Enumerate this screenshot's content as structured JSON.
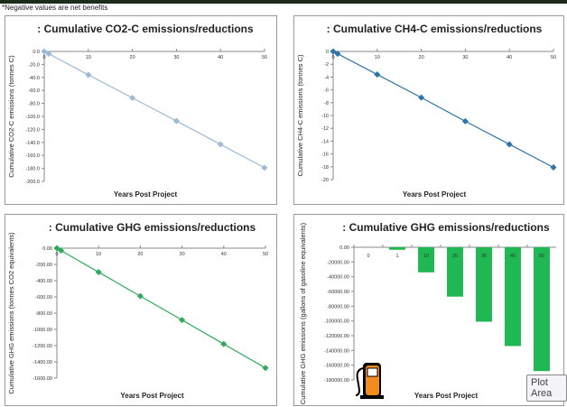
{
  "note": "*Negative values are net benefits",
  "tooltip": "Plot Area",
  "chart_data": [
    {
      "type": "line",
      "title": ": Cumulative  CO2-C  emissions/reductions",
      "xlabel": "Years Post Project",
      "ylabel": "Cumulative  CO2-C emissions  (tonnes C)",
      "x": [
        0,
        1,
        10,
        20,
        30,
        40,
        50
      ],
      "values": [
        0,
        -3.6,
        -36,
        -71.5,
        -107,
        -143,
        -179
      ],
      "xlim": [
        0,
        50
      ],
      "ylim": [
        -200,
        0
      ],
      "ytick_step": 20,
      "ytick_decimals": 1,
      "xticks": [
        0,
        10,
        20,
        30,
        40,
        50
      ],
      "color": "#9dbbd8",
      "grid": false
    },
    {
      "type": "line",
      "title": ": Cumulative CH4-C emissions/reductions",
      "xlabel": "Years Post Project",
      "ylabel": "Cumulative CH4-C emissions  (tonnes C)",
      "x": [
        0,
        1,
        10,
        20,
        30,
        40,
        50
      ],
      "values": [
        0,
        -0.36,
        -3.6,
        -7.2,
        -10.9,
        -14.5,
        -18.1
      ],
      "xlim": [
        0,
        50
      ],
      "ylim": [
        -20,
        0
      ],
      "ytick_step": 2,
      "ytick_decimals": 0,
      "xticks": [
        0,
        10,
        20,
        30,
        40,
        50
      ],
      "color": "#2e74a8",
      "grid": false
    },
    {
      "type": "line",
      "title": ": Cumulative GHG emissions/reductions",
      "xlabel": "Years Post Project",
      "ylabel": "Cumulative GHG emissions  (tonnes CO2 equivalents)",
      "x": [
        0,
        1,
        10,
        20,
        30,
        40,
        50
      ],
      "values": [
        0,
        -29,
        -295,
        -590,
        -885,
        -1180,
        -1475
      ],
      "xlim": [
        0,
        50
      ],
      "ylim": [
        -1600,
        0
      ],
      "ytick_step": 200,
      "ytick_decimals": 2,
      "xticks": [
        0,
        10,
        20,
        30,
        40,
        50
      ],
      "color": "#2eaa5a",
      "grid": false
    },
    {
      "type": "bar",
      "title": ": Cumulative GHG emissions/reductions",
      "xlabel": "Years Post Project",
      "ylabel": "Cumulative GHG emissions  (gallons of gasoline equivalents)",
      "categories": [
        "0",
        "1",
        "10",
        "20",
        "30",
        "40",
        "50"
      ],
      "values": [
        0,
        -3400,
        -34000,
        -67000,
        -101000,
        -134000,
        -168000
      ],
      "ylim": [
        -180000,
        0
      ],
      "ytick_step": 20000,
      "ytick_decimals": 2,
      "color": "#1fb852",
      "grid": false,
      "icon": "gas-pump-icon"
    }
  ]
}
